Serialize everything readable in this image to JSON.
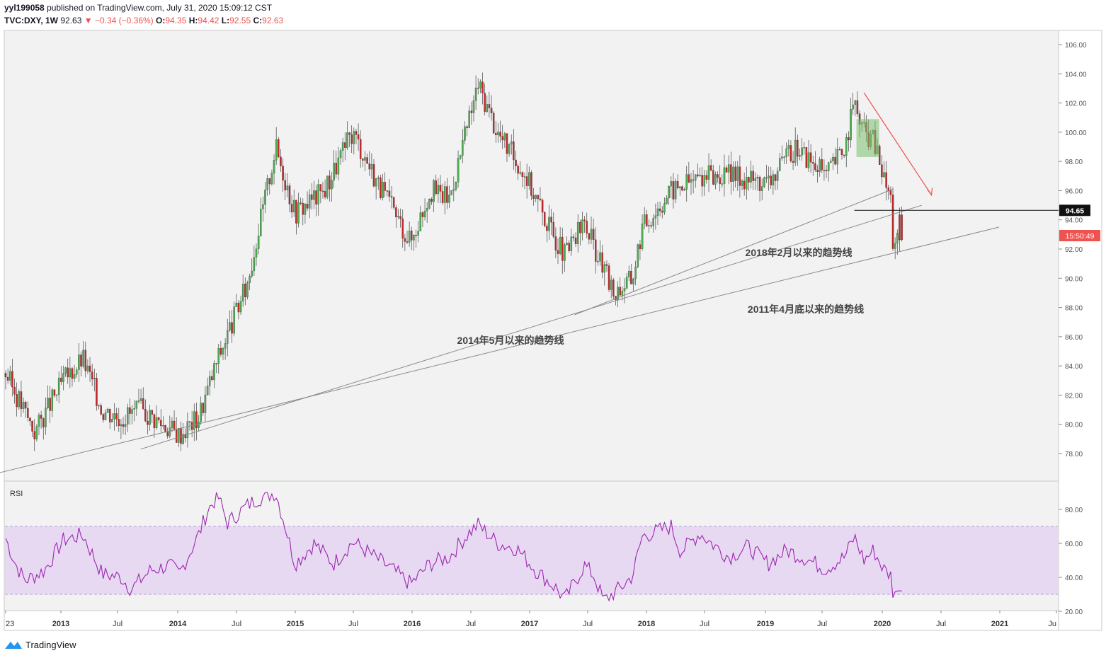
{
  "header": {
    "user": "yyl199058",
    "published_text": "published on TradingView.com, July 31, 2020 15:09:12 CST",
    "symbol": "TVC:DXY, 1W",
    "last": "92.63",
    "change": "▼ −0.34 (−0.36%)",
    "o_label": "O:",
    "o_value": "94.35",
    "h_label": "H:",
    "h_value": "94.42",
    "l_label": "L:",
    "l_value": "92.55",
    "c_label": "C:",
    "c_value": "92.63"
  },
  "footer": {
    "brand": "TradingView"
  },
  "colors": {
    "up": "#26a69a",
    "down": "#ef5350",
    "candle_up": "#4caf50",
    "candle_down": "#c62828",
    "rsi_line": "#9c27b0",
    "rsi_band": "#e8d9f2",
    "highlight": "#7cbf6e",
    "arrow": "#ef5350"
  },
  "chart_data": [
    {
      "type": "candlestick",
      "title": "TVC:DXY, 1W",
      "yaxis_ticks": [
        "106.00",
        "104.00",
        "102.00",
        "100.00",
        "98.00",
        "96.00",
        "94.00",
        "92.00",
        "90.00",
        "88.00",
        "86.00",
        "84.00",
        "82.00",
        "80.00",
        "78.00"
      ],
      "xaxis_ticks": [
        "23",
        "2013",
        "Jul",
        "2014",
        "Jul",
        "2015",
        "Jul",
        "2016",
        "Jul",
        "2017",
        "Jul",
        "2018",
        "Jul",
        "2019",
        "Jul",
        "2020",
        "Jul",
        "2021",
        "Ju"
      ],
      "ylim": [
        76.5,
        107
      ],
      "price_label": "94.65",
      "countdown_label": "15:50:49",
      "annotations": [
        "2018年2月以来的趋势线",
        "2011年4月底以来的趋势线",
        "2014年5月以来的趋势线"
      ],
      "trendlines": [
        {
          "name": "2018年2月以来的趋势线",
          "from": [
            "2017-10",
            87.5
          ],
          "to": [
            "2020-07",
            96.1
          ]
        },
        {
          "name": "2011年4月底以来的趋势线",
          "from": [
            "2012-08",
            76.3
          ],
          "to": [
            "2021-06",
            93.5
          ]
        },
        {
          "name": "2014年5月以来的趋势线",
          "from": [
            "2014-01",
            78.3
          ],
          "to": [
            "2020-10",
            95.0
          ]
        }
      ],
      "horizontal_level": 94.65,
      "keypoints": [
        [
          "2012-11",
          83.5
        ],
        [
          "2013-02",
          79.5
        ],
        [
          "2013-05",
          83.0
        ],
        [
          "2013-07",
          84.5
        ],
        [
          "2013-09",
          81.0
        ],
        [
          "2013-11",
          80.5
        ],
        [
          "2014-01",
          81.0
        ],
        [
          "2014-05",
          79.3
        ],
        [
          "2014-07",
          80.5
        ],
        [
          "2014-09",
          84.5
        ],
        [
          "2014-12",
          89.5
        ],
        [
          "2015-03",
          99.0
        ],
        [
          "2015-05",
          94.5
        ],
        [
          "2015-08",
          96.0
        ],
        [
          "2015-11",
          100.0
        ],
        [
          "2016-02",
          96.0
        ],
        [
          "2016-05",
          92.5
        ],
        [
          "2016-07",
          96.0
        ],
        [
          "2016-09",
          95.5
        ],
        [
          "2016-12",
          103.3
        ],
        [
          "2017-02",
          100.0
        ],
        [
          "2017-05",
          97.0
        ],
        [
          "2017-07",
          94.0
        ],
        [
          "2017-09",
          91.5
        ],
        [
          "2017-11",
          93.8
        ],
        [
          "2018-02",
          89.0
        ],
        [
          "2018-04",
          90.0
        ],
        [
          "2018-05",
          93.5
        ],
        [
          "2018-08",
          96.0
        ],
        [
          "2018-11",
          97.0
        ],
        [
          "2019-03",
          97.0
        ],
        [
          "2019-06",
          96.5
        ],
        [
          "2019-09",
          99.0
        ],
        [
          "2019-12",
          97.0
        ],
        [
          "2020-02",
          99.0
        ],
        [
          "2020-03",
          102.0
        ],
        [
          "2020-04",
          100.0
        ],
        [
          "2020-05",
          99.5
        ],
        [
          "2020-06",
          97.0
        ],
        [
          "2020-07",
          95.0
        ],
        [
          "2020-07",
          92.63
        ]
      ]
    },
    {
      "type": "line",
      "title": "RSI",
      "yaxis_ticks": [
        "80.00",
        "60.00",
        "40.00",
        "20.00"
      ],
      "ylim": [
        20,
        90
      ],
      "band": [
        30,
        70
      ],
      "keypoints": [
        [
          "2012-11",
          63
        ],
        [
          "2012-12",
          48
        ],
        [
          "2013-01",
          38
        ],
        [
          "2013-03",
          44
        ],
        [
          "2013-05",
          62
        ],
        [
          "2013-07",
          65
        ],
        [
          "2013-09",
          42
        ],
        [
          "2013-11",
          40
        ],
        [
          "2013-12",
          33
        ],
        [
          "2014-02",
          44
        ],
        [
          "2014-04",
          47
        ],
        [
          "2014-05",
          42
        ],
        [
          "2014-07",
          65
        ],
        [
          "2014-08",
          80
        ],
        [
          "2014-09",
          88
        ],
        [
          "2014-10",
          72
        ],
        [
          "2014-12",
          82
        ],
        [
          "2015-01",
          86
        ],
        [
          "2015-03",
          90
        ],
        [
          "2015-04",
          70
        ],
        [
          "2015-05",
          48
        ],
        [
          "2015-07",
          60
        ],
        [
          "2015-09",
          48
        ],
        [
          "2015-11",
          61
        ],
        [
          "2016-01",
          53
        ],
        [
          "2016-03",
          45
        ],
        [
          "2016-05",
          36
        ],
        [
          "2016-07",
          48
        ],
        [
          "2016-09",
          52
        ],
        [
          "2016-11",
          66
        ],
        [
          "2016-12",
          71
        ],
        [
          "2017-02",
          60
        ],
        [
          "2017-04",
          57
        ],
        [
          "2017-06",
          44
        ],
        [
          "2017-08",
          34
        ],
        [
          "2017-09",
          27
        ],
        [
          "2017-11",
          47
        ],
        [
          "2017-12",
          41
        ],
        [
          "2018-01",
          26
        ],
        [
          "2018-03",
          35
        ],
        [
          "2018-04",
          41
        ],
        [
          "2018-05",
          64
        ],
        [
          "2018-07",
          68
        ],
        [
          "2018-08",
          70
        ],
        [
          "2018-09",
          55
        ],
        [
          "2018-11",
          66
        ],
        [
          "2018-12",
          61
        ],
        [
          "2019-02",
          52
        ],
        [
          "2019-04",
          58
        ],
        [
          "2019-06",
          48
        ],
        [
          "2019-08",
          56
        ],
        [
          "2019-10",
          51
        ],
        [
          "2019-12",
          45
        ],
        [
          "2020-02",
          52
        ],
        [
          "2020-03",
          64
        ],
        [
          "2020-04",
          50
        ],
        [
          "2020-05",
          56
        ],
        [
          "2020-06",
          45
        ],
        [
          "2020-07",
          40
        ],
        [
          "2020-07",
          32
        ]
      ]
    }
  ]
}
